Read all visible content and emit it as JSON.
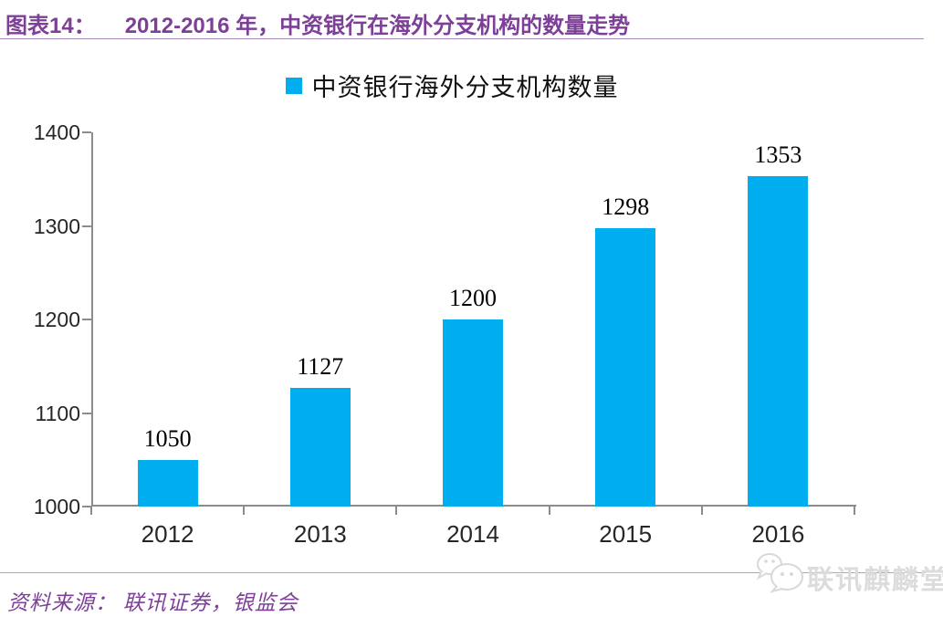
{
  "header": {
    "figure_label": "图表14：",
    "title": "2012-2016 年，中资银行在海外分支机构的数量走势"
  },
  "legend": {
    "label": "中资银行海外分支机构数量",
    "marker_color": "#00AEEF"
  },
  "chart_data": {
    "type": "bar",
    "title": "中资银行海外分支机构数量",
    "categories": [
      "2012",
      "2013",
      "2014",
      "2015",
      "2016"
    ],
    "values": [
      1050,
      1127,
      1200,
      1298,
      1353
    ],
    "xlabel": "",
    "ylabel": "",
    "ylim": [
      1000,
      1400
    ],
    "yticks": [
      1000,
      1100,
      1200,
      1300,
      1400
    ],
    "grid": false,
    "legend_position": "top",
    "data_labels": true,
    "bar_color": "#00AEEF"
  },
  "footer": {
    "source_text": "资料来源： 联讯证券，银监会",
    "logo_text": "联讯麒麟堂"
  },
  "colors": {
    "accent_purple": "#7D3F98",
    "bar_fill": "#00AEEF",
    "axis_grey": "#8C8C8C",
    "rule_purple": "#A98BBB",
    "footer_line_grey": "#ABABAB",
    "watermark_grey": "#DCDCDC"
  }
}
